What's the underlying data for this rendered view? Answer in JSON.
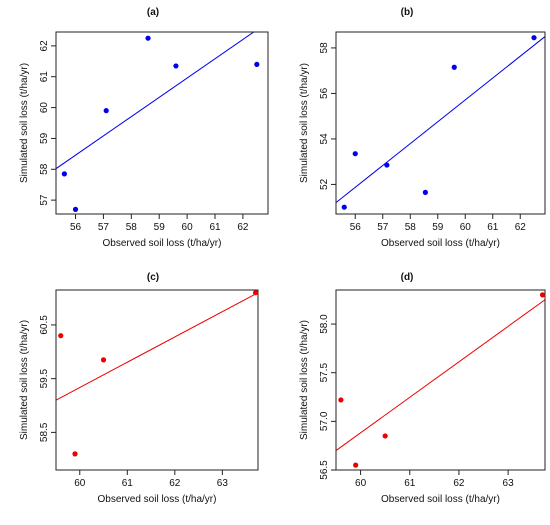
{
  "colors": {
    "blue": "#0000ee",
    "red": "#ee0000"
  },
  "chart_data": [
    {
      "type": "scatter",
      "title": "(a)",
      "xlabel": "Observed soil loss (t/ha/yr)",
      "ylabel": "Simulated soil loss (t/ha/yr)",
      "xlim": [
        55.3,
        62.9
      ],
      "ylim": [
        56.55,
        62.45
      ],
      "xticks": [
        56,
        57,
        58,
        59,
        60,
        61,
        62
      ],
      "yticks": [
        57,
        58,
        59,
        60,
        61,
        62
      ],
      "color": "#0000ee",
      "x": [
        55.6,
        56.0,
        57.1,
        58.6,
        59.6,
        62.5
      ],
      "y": [
        57.85,
        56.7,
        59.9,
        62.25,
        61.35,
        61.4
      ],
      "fit_line": [
        [
          55.3,
          58.02
        ],
        [
          62.9,
          62.77
        ]
      ]
    },
    {
      "type": "scatter",
      "title": "(b)",
      "xlabel": "Observed soil loss (t/ha/yr)",
      "ylabel": "Simulated soil loss (t/ha/yr)",
      "xlim": [
        55.3,
        62.9
      ],
      "ylim": [
        50.7,
        58.7
      ],
      "xticks": [
        56,
        57,
        58,
        59,
        60,
        61,
        62
      ],
      "yticks": [
        52,
        54,
        56,
        58
      ],
      "color": "#0000ee",
      "x": [
        55.6,
        56.0,
        57.15,
        58.55,
        59.6,
        62.5
      ],
      "y": [
        51.0,
        53.35,
        52.85,
        51.65,
        57.15,
        58.45
      ],
      "fit_line": [
        [
          55.3,
          51.2
        ],
        [
          62.9,
          58.5
        ]
      ]
    },
    {
      "type": "scatter",
      "title": "(c)",
      "xlabel": "Observed soil loss (t/ha/yr)",
      "ylabel": "Simulated soil loss (t/ha/yr)",
      "xlim": [
        59.5,
        63.75
      ],
      "ylim": [
        57.8,
        61.15
      ],
      "xticks": [
        60,
        61,
        62,
        63
      ],
      "yticks": [
        58.5,
        59.5,
        60.5
      ],
      "color": "#ee0000",
      "x": [
        59.6,
        59.9,
        60.5,
        63.7
      ],
      "y": [
        60.3,
        58.1,
        59.85,
        61.1
      ],
      "fit_line": [
        [
          59.5,
          59.1
        ],
        [
          63.75,
          61.1
        ]
      ]
    },
    {
      "type": "scatter",
      "title": "(d)",
      "xlabel": "Observed soil loss (t/ha/yr)",
      "ylabel": "Simulated soil loss (t/ha/yr)",
      "xlim": [
        59.5,
        63.75
      ],
      "ylim": [
        56.5,
        58.35
      ],
      "xticks": [
        60,
        61,
        62,
        63
      ],
      "yticks": [
        56.5,
        57.0,
        57.5,
        58.0
      ],
      "ytick_format": "fixed1",
      "color": "#ee0000",
      "x": [
        59.6,
        59.9,
        60.5,
        63.7
      ],
      "y": [
        57.22,
        56.55,
        56.85,
        58.3
      ],
      "fit_line": [
        [
          59.5,
          56.7
        ],
        [
          63.75,
          58.25
        ]
      ]
    }
  ]
}
